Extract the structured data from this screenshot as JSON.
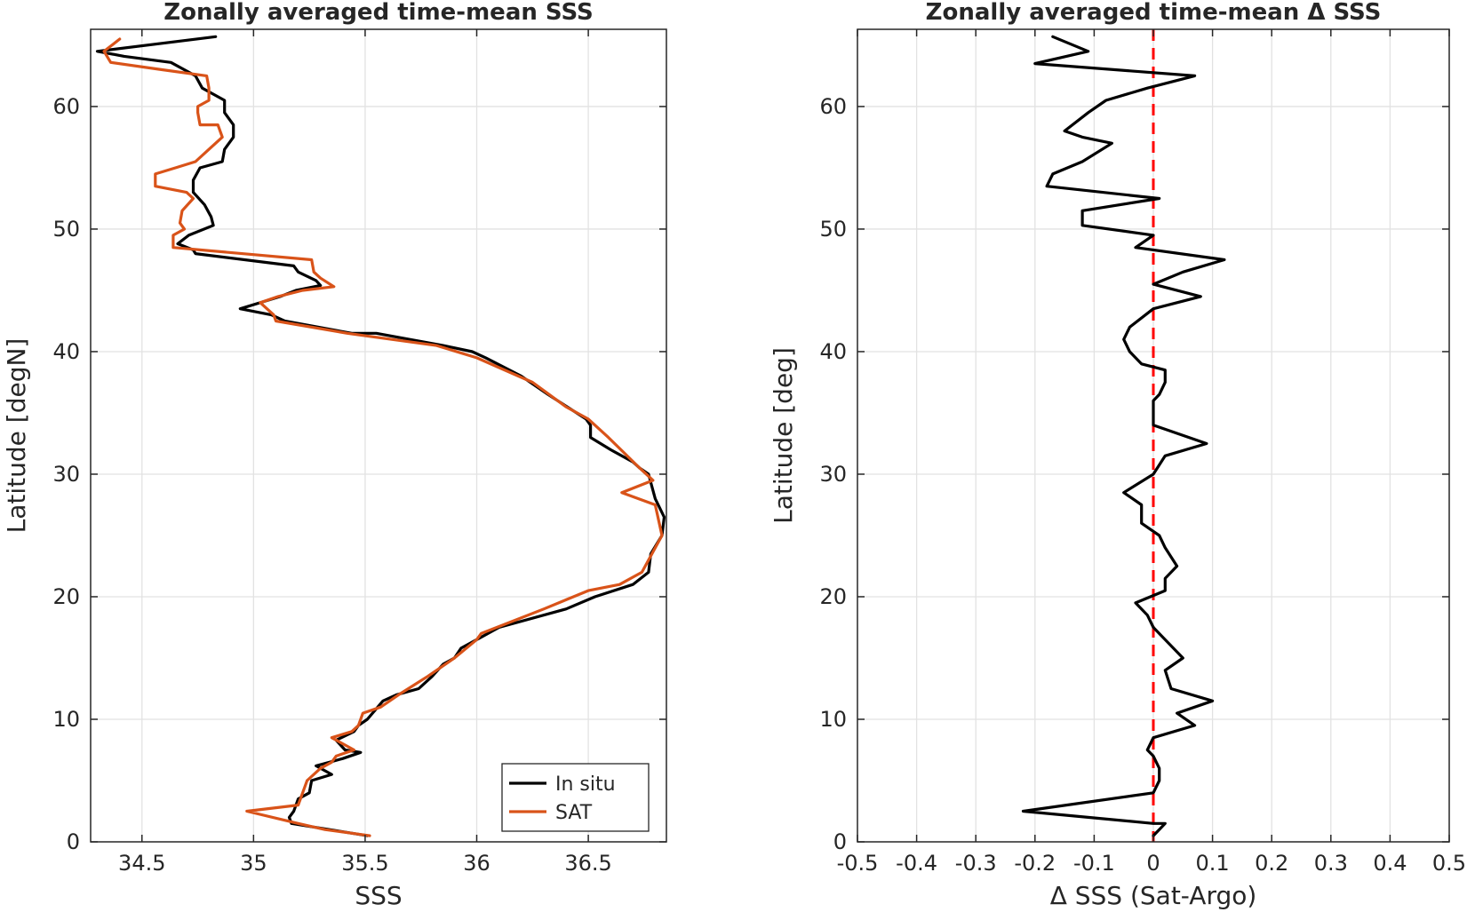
{
  "chart_data": [
    {
      "type": "line",
      "title": "Zonally averaged time-mean SSS",
      "xlabel": "SSS",
      "ylabel": "Latitude [degN]",
      "xlim": [
        34.27,
        36.85
      ],
      "ylim": [
        0,
        66.3
      ],
      "xticks": [
        34.5,
        35,
        35.5,
        36,
        36.5
      ],
      "xtick_labels": [
        "34.5",
        "35",
        "35.5",
        "36",
        "36.5"
      ],
      "yticks": [
        0,
        10,
        20,
        30,
        40,
        50,
        60
      ],
      "ytick_labels": [
        "0",
        "10",
        "20",
        "30",
        "40",
        "50",
        "60"
      ],
      "grid": true,
      "legend": "bottom-right",
      "series": [
        {
          "name": "In situ",
          "color": "#000000",
          "points": [
            [
              34.83,
              65.7
            ],
            [
              34.3,
              64.5
            ],
            [
              34.42,
              64.1
            ],
            [
              34.63,
              63.6
            ],
            [
              34.74,
              62.5
            ],
            [
              34.77,
              61.5
            ],
            [
              34.84,
              60.8
            ],
            [
              34.87,
              60.5
            ],
            [
              34.87,
              59.5
            ],
            [
              34.91,
              58.5
            ],
            [
              34.91,
              57.5
            ],
            [
              34.87,
              56.5
            ],
            [
              34.86,
              55.5
            ],
            [
              34.76,
              55
            ],
            [
              34.73,
              54
            ],
            [
              34.73,
              53
            ],
            [
              34.78,
              52
            ],
            [
              34.81,
              51
            ],
            [
              34.82,
              50.3
            ],
            [
              34.71,
              49.5
            ],
            [
              34.66,
              48.8
            ],
            [
              34.73,
              48.3
            ],
            [
              34.74,
              48
            ],
            [
              35.18,
              47
            ],
            [
              35.2,
              46.5
            ],
            [
              35.28,
              45.8
            ],
            [
              35.3,
              45.4
            ],
            [
              35.19,
              45
            ],
            [
              35.12,
              44.5
            ],
            [
              34.94,
              43.5
            ],
            [
              35.08,
              43
            ],
            [
              35.14,
              42.5
            ],
            [
              35.44,
              41.5
            ],
            [
              35.55,
              41.5
            ],
            [
              35.85,
              40.5
            ],
            [
              35.98,
              40
            ],
            [
              36.04,
              39.5
            ],
            [
              36.2,
              38
            ],
            [
              36.32,
              36.5
            ],
            [
              36.49,
              34.5
            ],
            [
              36.51,
              34
            ],
            [
              36.51,
              33
            ],
            [
              36.6,
              32
            ],
            [
              36.7,
              31
            ],
            [
              36.73,
              30.5
            ],
            [
              36.77,
              30
            ],
            [
              36.8,
              28
            ],
            [
              36.84,
              26.5
            ],
            [
              36.83,
              25
            ],
            [
              36.78,
              23.5
            ],
            [
              36.77,
              22
            ],
            [
              36.7,
              21
            ],
            [
              36.53,
              20
            ],
            [
              36.4,
              19
            ],
            [
              36.1,
              17.5
            ],
            [
              36.0,
              16.5
            ],
            [
              35.93,
              15.8
            ],
            [
              35.9,
              15
            ],
            [
              35.85,
              14.5
            ],
            [
              35.8,
              13.5
            ],
            [
              35.74,
              12.5
            ],
            [
              35.64,
              12
            ],
            [
              35.58,
              11.5
            ],
            [
              35.51,
              10
            ],
            [
              35.47,
              9.5
            ],
            [
              35.45,
              9
            ],
            [
              35.37,
              8.3
            ],
            [
              35.41,
              7.5
            ],
            [
              35.48,
              7.3
            ],
            [
              35.4,
              6.8
            ],
            [
              35.28,
              6.2
            ],
            [
              35.35,
              5.5
            ],
            [
              35.26,
              5
            ],
            [
              35.25,
              4
            ],
            [
              35.2,
              3.5
            ],
            [
              35.18,
              2.5
            ],
            [
              35.16,
              2
            ],
            [
              35.17,
              1.5
            ],
            [
              35.51,
              0.5
            ]
          ]
        },
        {
          "name": "SAT",
          "color": "#D95319",
          "points": [
            [
              34.4,
              65.5
            ],
            [
              34.33,
              64.5
            ],
            [
              34.36,
              63.6
            ],
            [
              34.59,
              63
            ],
            [
              34.79,
              62.5
            ],
            [
              34.8,
              61.5
            ],
            [
              34.8,
              60.5
            ],
            [
              34.75,
              60
            ],
            [
              34.75,
              59.5
            ],
            [
              34.76,
              58.5
            ],
            [
              34.84,
              58.5
            ],
            [
              34.86,
              57.5
            ],
            [
              34.8,
              56.5
            ],
            [
              34.74,
              55.5
            ],
            [
              34.65,
              55
            ],
            [
              34.56,
              54.5
            ],
            [
              34.56,
              53.5
            ],
            [
              34.7,
              53
            ],
            [
              34.73,
              52.5
            ],
            [
              34.68,
              51.5
            ],
            [
              34.67,
              50.5
            ],
            [
              34.69,
              50
            ],
            [
              34.64,
              49.5
            ],
            [
              34.64,
              48.5
            ],
            [
              35.26,
              47.5
            ],
            [
              35.27,
              46.5
            ],
            [
              35.3,
              46
            ],
            [
              35.36,
              45.3
            ],
            [
              35.22,
              45
            ],
            [
              35.11,
              44.5
            ],
            [
              35.03,
              44
            ],
            [
              35.09,
              43
            ],
            [
              35.1,
              42.5
            ],
            [
              35.42,
              41.5
            ],
            [
              35.82,
              40.5
            ],
            [
              36.0,
              39.5
            ],
            [
              36.25,
              37.5
            ],
            [
              36.4,
              35.5
            ],
            [
              36.5,
              34.5
            ],
            [
              36.59,
              33
            ],
            [
              36.73,
              30.5
            ],
            [
              36.79,
              29.5
            ],
            [
              36.65,
              28.5
            ],
            [
              36.8,
              27.5
            ],
            [
              36.83,
              25
            ],
            [
              36.74,
              22
            ],
            [
              36.64,
              21
            ],
            [
              36.5,
              20.5
            ],
            [
              36.3,
              19
            ],
            [
              36.02,
              17
            ],
            [
              36.0,
              16.5
            ],
            [
              35.9,
              15
            ],
            [
              35.78,
              13.5
            ],
            [
              35.65,
              12
            ],
            [
              35.57,
              11
            ],
            [
              35.49,
              10.5
            ],
            [
              35.47,
              9.5
            ],
            [
              35.44,
              9
            ],
            [
              35.35,
              8.5
            ],
            [
              35.45,
              7.5
            ],
            [
              35.37,
              7
            ],
            [
              35.35,
              6.5
            ],
            [
              35.3,
              6
            ],
            [
              35.24,
              5
            ],
            [
              35.22,
              4
            ],
            [
              35.2,
              3
            ],
            [
              34.97,
              2.5
            ],
            [
              35.2,
              1.5
            ],
            [
              35.32,
              1
            ],
            [
              35.52,
              0.5
            ]
          ]
        }
      ]
    },
    {
      "type": "line",
      "title": "Zonally averaged time-mean Δ SSS",
      "xlabel": "Δ SSS (Sat-Argo)",
      "ylabel": "Latitude [deg]",
      "xlim": [
        -0.5,
        0.5
      ],
      "ylim": [
        0,
        66.3
      ],
      "xticks": [
        -0.5,
        -0.4,
        -0.3,
        -0.2,
        -0.1,
        0,
        0.1,
        0.2,
        0.3,
        0.4,
        0.5
      ],
      "xtick_labels": [
        "-0.5",
        "-0.4",
        "-0.3",
        "-0.2",
        "-0.1",
        "0",
        "0.1",
        "0.2",
        "0.3",
        "0.4",
        "0.5"
      ],
      "yticks": [
        0,
        10,
        20,
        30,
        40,
        50,
        60
      ],
      "ytick_labels": [
        "0",
        "10",
        "20",
        "30",
        "40",
        "50",
        "60"
      ],
      "grid": true,
      "reference_line": {
        "x": 0,
        "color": "#FF0000",
        "style": "dashed"
      },
      "series": [
        {
          "color": "#000000",
          "points": [
            [
              -0.17,
              65.7
            ],
            [
              -0.11,
              64.5
            ],
            [
              -0.2,
              63.5
            ],
            [
              0.07,
              62.5
            ],
            [
              -0.01,
              61.5
            ],
            [
              -0.08,
              60.5
            ],
            [
              -0.11,
              59.5
            ],
            [
              -0.15,
              58
            ],
            [
              -0.12,
              57.5
            ],
            [
              -0.07,
              57
            ],
            [
              -0.12,
              55.5
            ],
            [
              -0.17,
              54.5
            ],
            [
              -0.18,
              53.5
            ],
            [
              0.01,
              52.5
            ],
            [
              -0.12,
              51.5
            ],
            [
              -0.12,
              50.3
            ],
            [
              0.0,
              49.5
            ],
            [
              -0.03,
              48.5
            ],
            [
              0.12,
              47.5
            ],
            [
              0.05,
              46.5
            ],
            [
              -0.0,
              45.5
            ],
            [
              0.08,
              44.5
            ],
            [
              0.0,
              43.5
            ],
            [
              -0.04,
              42
            ],
            [
              -0.05,
              41
            ],
            [
              -0.04,
              40
            ],
            [
              -0.02,
              39
            ],
            [
              0.02,
              38.5
            ],
            [
              0.02,
              37.5
            ],
            [
              0.01,
              36.5
            ],
            [
              0.0,
              36
            ],
            [
              -0.0,
              35
            ],
            [
              -0.0,
              34
            ],
            [
              0.09,
              32.5
            ],
            [
              0.02,
              31.5
            ],
            [
              0.0,
              30
            ],
            [
              -0.05,
              28.5
            ],
            [
              -0.02,
              27.5
            ],
            [
              -0.02,
              26
            ],
            [
              0.01,
              25
            ],
            [
              0.02,
              24
            ],
            [
              0.04,
              22.5
            ],
            [
              0.02,
              21.5
            ],
            [
              0.02,
              20.5
            ],
            [
              -0.03,
              19.5
            ],
            [
              -0.01,
              18.5
            ],
            [
              0.0,
              17.5
            ],
            [
              0.02,
              16.5
            ],
            [
              0.05,
              15
            ],
            [
              0.02,
              14
            ],
            [
              0.03,
              12.5
            ],
            [
              0.1,
              11.5
            ],
            [
              0.04,
              10.5
            ],
            [
              0.07,
              9.5
            ],
            [
              0.0,
              8.5
            ],
            [
              -0.01,
              7.5
            ],
            [
              0.0,
              7
            ],
            [
              0.01,
              6
            ],
            [
              0.01,
              5
            ],
            [
              0.0,
              4
            ],
            [
              -0.22,
              2.5
            ],
            [
              0.0,
              1.5
            ],
            [
              0.02,
              1.5
            ],
            [
              0.0,
              0.5
            ]
          ]
        }
      ]
    }
  ]
}
